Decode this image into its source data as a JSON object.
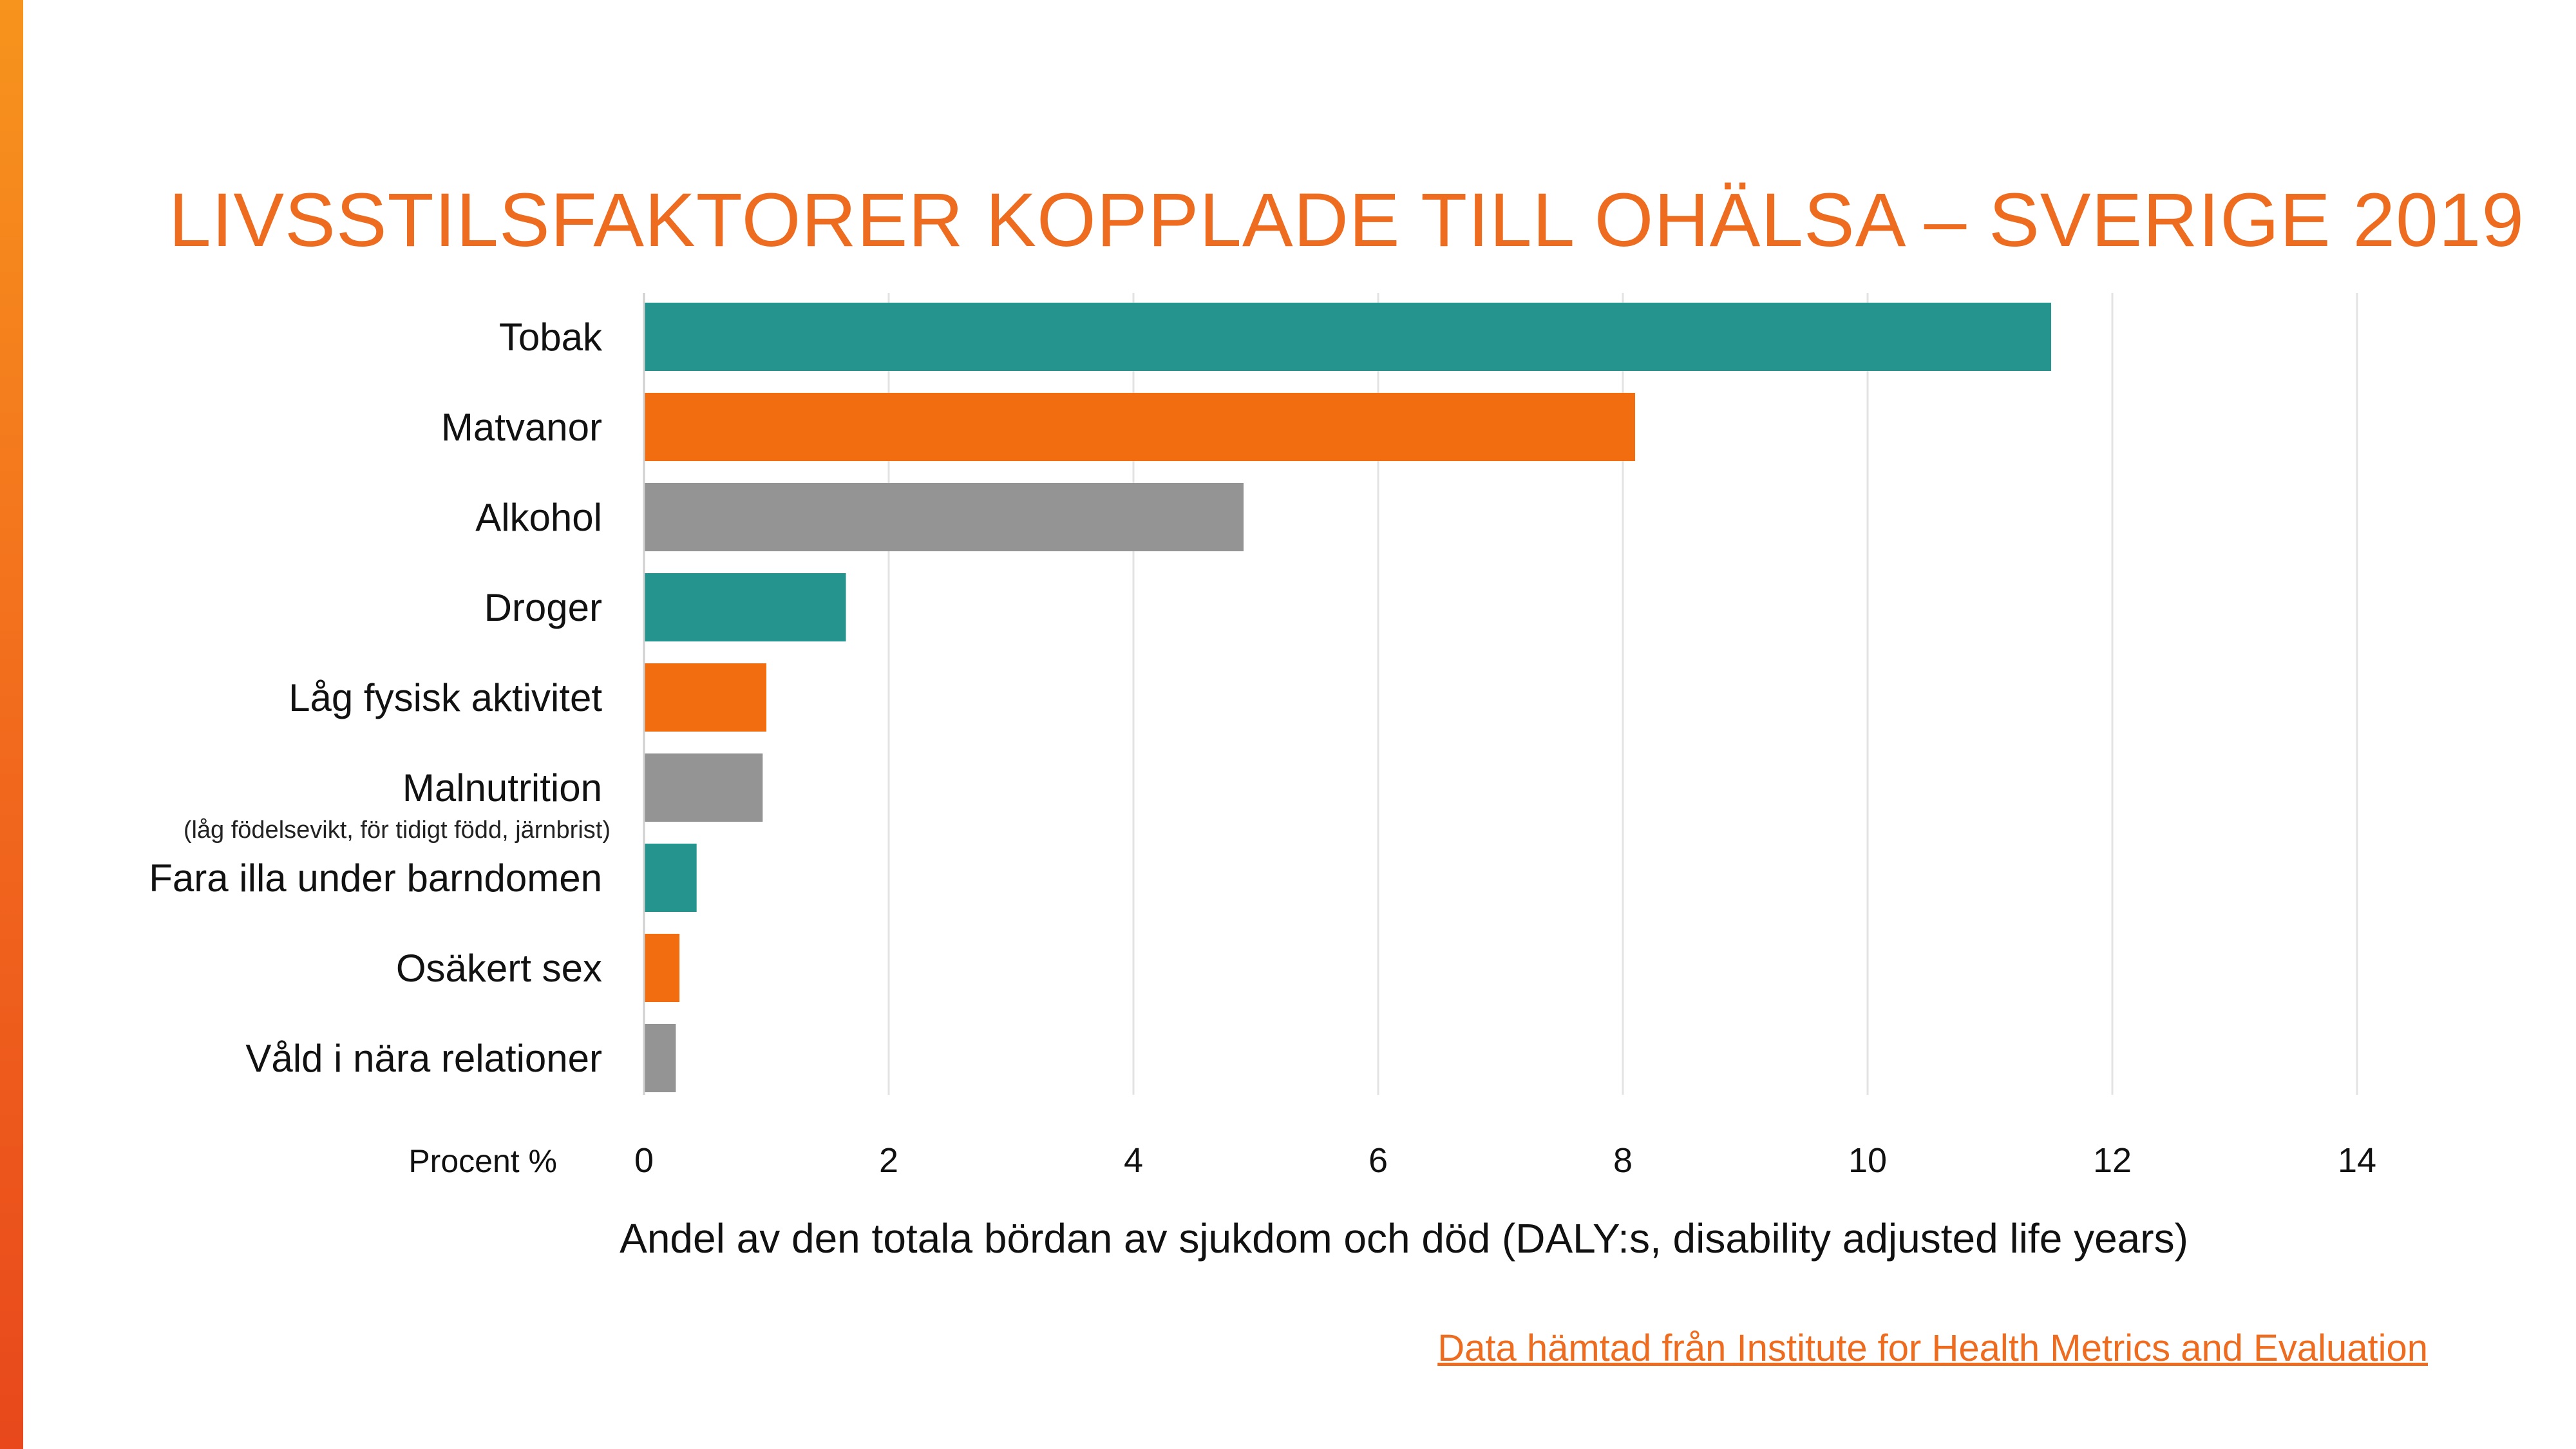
{
  "slide": {
    "title": "LIVSSTILSFAKTORER KOPPLADE TILL OHÄLSA – SVERIGE 2019",
    "source_link": "Data hämtad från Institute for Health Metrics and Evaluation"
  },
  "colors": {
    "teal": "#26948e",
    "orange": "#f26d0f",
    "gray": "#949494",
    "title": "#ee6c1f",
    "grid": "#e3e3e3"
  },
  "chart_data": {
    "type": "bar",
    "orientation": "horizontal",
    "categories": [
      "Tobak",
      "Matvanor",
      "Alkohol",
      "Droger",
      "Låg fysisk aktivitet",
      "Malnutrition",
      "Fara illa under barndomen",
      "Osäkert sex",
      "Våld i nära relationer"
    ],
    "category_notes": [
      "",
      "",
      "",
      "",
      "",
      "(låg födelsevikt, för tidigt född, järnbrist)",
      "",
      "",
      ""
    ],
    "values": [
      11.5,
      8.1,
      4.9,
      1.65,
      1.0,
      0.97,
      0.43,
      0.29,
      0.26
    ],
    "bar_colors": [
      "teal",
      "orange",
      "gray",
      "teal",
      "orange",
      "gray",
      "teal",
      "orange",
      "gray"
    ],
    "xlim": [
      0,
      14
    ],
    "xticks": [
      0,
      2,
      4,
      6,
      8,
      10,
      12,
      14
    ],
    "unit_label": "Procent %",
    "xlabel": "Andel av den totala bördan av sjukdom och död (DALY:s, disability adjusted life years)",
    "grid": true,
    "legend": "none"
  }
}
